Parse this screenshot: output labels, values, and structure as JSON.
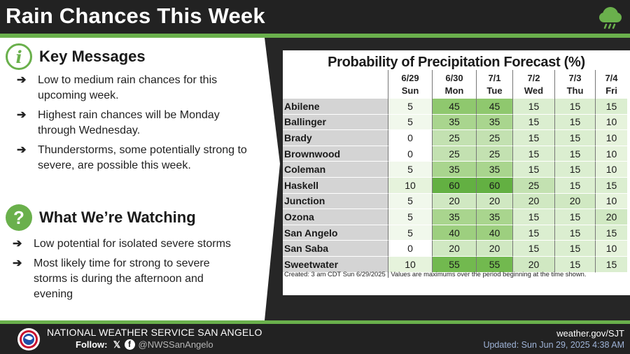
{
  "header": {
    "title": "Rain Chances This Week"
  },
  "key_messages": {
    "icon": "info-icon",
    "title": "Key Messages",
    "bullets": [
      "Low to medium rain chances for this upcoming week.",
      "Highest rain chances will be Monday through Wednesday.",
      "Thunderstorms, some potentially strong to severe, are possible this week."
    ]
  },
  "watching": {
    "icon": "question-icon",
    "title": "What We’re Watching",
    "bullets": [
      "Low potential for isolated severe storms",
      "Most likely time for strong to severe storms is during the afternoon and evening"
    ]
  },
  "table": {
    "title": "Probability of Precipitation Forecast (%)",
    "columns": [
      {
        "date": "6/29",
        "day": "Sun"
      },
      {
        "date": "6/30",
        "day": "Mon"
      },
      {
        "date": "7/1",
        "day": "Tue"
      },
      {
        "date": "7/2",
        "day": "Wed"
      },
      {
        "date": "7/3",
        "day": "Thu"
      },
      {
        "date": "7/4",
        "day": "Fri"
      }
    ],
    "rows": [
      {
        "location": "Abilene",
        "values": [
          "5",
          "45",
          "45",
          "15",
          "15",
          "15"
        ]
      },
      {
        "location": "Ballinger",
        "values": [
          "5",
          "35",
          "35",
          "15",
          "15",
          "10"
        ]
      },
      {
        "location": "Brady",
        "values": [
          "0",
          "25",
          "25",
          "15",
          "15",
          "10"
        ]
      },
      {
        "location": "Brownwood",
        "values": [
          "0",
          "25",
          "25",
          "15",
          "15",
          "10"
        ]
      },
      {
        "location": "Coleman",
        "values": [
          "5",
          "35",
          "35",
          "15",
          "15",
          "10"
        ]
      },
      {
        "location": "Haskell",
        "values": [
          "10",
          "60",
          "60",
          "25",
          "15",
          "15"
        ]
      },
      {
        "location": "Junction",
        "values": [
          "5",
          "20",
          "20",
          "20",
          "20",
          "10"
        ]
      },
      {
        "location": "Ozona",
        "values": [
          "5",
          "35",
          "35",
          "15",
          "15",
          "20"
        ]
      },
      {
        "location": "San Angelo",
        "values": [
          "5",
          "40",
          "40",
          "15",
          "15",
          "15"
        ]
      },
      {
        "location": "San Saba",
        "values": [
          "0",
          "20",
          "20",
          "15",
          "15",
          "10"
        ]
      },
      {
        "location": "Sweetwater",
        "values": [
          "10",
          "55",
          "55",
          "20",
          "15",
          "15"
        ]
      }
    ],
    "footnote": "Created: 3 am CDT Sun 6/29/2025  |  Values are maximums over the period beginning at the time shown."
  },
  "footer": {
    "office": "NATIONAL WEATHER SERVICE SAN ANGELO",
    "follow_label": "Follow:",
    "handle": "@NWSSanAngelo",
    "website": "weather.gov/SJT",
    "updated": "Updated: Sun Jun 29, 2025 4:38 AM"
  },
  "colors": {
    "accent_green": "#6ab04c",
    "header_bg": "#222222",
    "pop_scale": {
      "0": "#ffffff",
      "5": "#f1f8ec",
      "10": "#e6f3dc",
      "15": "#dbeed0",
      "20": "#d0e8c2",
      "25": "#c3e1b1",
      "35": "#a9d58e",
      "40": "#9dcf7f",
      "45": "#8fc86e",
      "55": "#72b94f",
      "60": "#63b042"
    }
  }
}
